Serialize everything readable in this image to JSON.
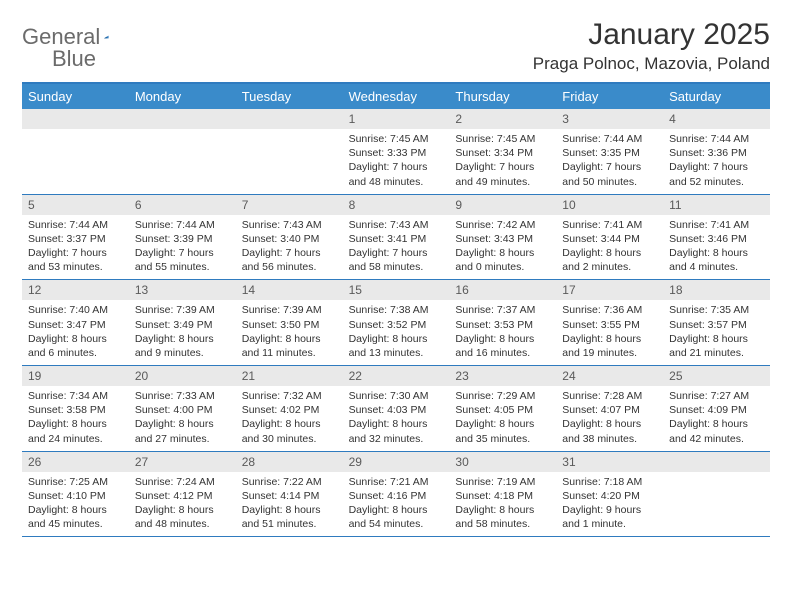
{
  "brand": {
    "part1": "General",
    "part2": "Blue"
  },
  "title": {
    "month": "January 2025",
    "location": "Praga Polnoc, Mazovia, Poland"
  },
  "colors": {
    "header_bg": "#3a8bca",
    "border": "#2f7bbf",
    "num_bg": "#e9e9e9",
    "text": "#333333",
    "logo_gray": "#6b6b6b"
  },
  "dayNames": [
    "Sunday",
    "Monday",
    "Tuesday",
    "Wednesday",
    "Thursday",
    "Friday",
    "Saturday"
  ],
  "weeks": [
    [
      {
        "n": "",
        "sr": "",
        "ss": "",
        "d1": "",
        "d2": ""
      },
      {
        "n": "",
        "sr": "",
        "ss": "",
        "d1": "",
        "d2": ""
      },
      {
        "n": "",
        "sr": "",
        "ss": "",
        "d1": "",
        "d2": ""
      },
      {
        "n": "1",
        "sr": "Sunrise: 7:45 AM",
        "ss": "Sunset: 3:33 PM",
        "d1": "Daylight: 7 hours",
        "d2": "and 48 minutes."
      },
      {
        "n": "2",
        "sr": "Sunrise: 7:45 AM",
        "ss": "Sunset: 3:34 PM",
        "d1": "Daylight: 7 hours",
        "d2": "and 49 minutes."
      },
      {
        "n": "3",
        "sr": "Sunrise: 7:44 AM",
        "ss": "Sunset: 3:35 PM",
        "d1": "Daylight: 7 hours",
        "d2": "and 50 minutes."
      },
      {
        "n": "4",
        "sr": "Sunrise: 7:44 AM",
        "ss": "Sunset: 3:36 PM",
        "d1": "Daylight: 7 hours",
        "d2": "and 52 minutes."
      }
    ],
    [
      {
        "n": "5",
        "sr": "Sunrise: 7:44 AM",
        "ss": "Sunset: 3:37 PM",
        "d1": "Daylight: 7 hours",
        "d2": "and 53 minutes."
      },
      {
        "n": "6",
        "sr": "Sunrise: 7:44 AM",
        "ss": "Sunset: 3:39 PM",
        "d1": "Daylight: 7 hours",
        "d2": "and 55 minutes."
      },
      {
        "n": "7",
        "sr": "Sunrise: 7:43 AM",
        "ss": "Sunset: 3:40 PM",
        "d1": "Daylight: 7 hours",
        "d2": "and 56 minutes."
      },
      {
        "n": "8",
        "sr": "Sunrise: 7:43 AM",
        "ss": "Sunset: 3:41 PM",
        "d1": "Daylight: 7 hours",
        "d2": "and 58 minutes."
      },
      {
        "n": "9",
        "sr": "Sunrise: 7:42 AM",
        "ss": "Sunset: 3:43 PM",
        "d1": "Daylight: 8 hours",
        "d2": "and 0 minutes."
      },
      {
        "n": "10",
        "sr": "Sunrise: 7:41 AM",
        "ss": "Sunset: 3:44 PM",
        "d1": "Daylight: 8 hours",
        "d2": "and 2 minutes."
      },
      {
        "n": "11",
        "sr": "Sunrise: 7:41 AM",
        "ss": "Sunset: 3:46 PM",
        "d1": "Daylight: 8 hours",
        "d2": "and 4 minutes."
      }
    ],
    [
      {
        "n": "12",
        "sr": "Sunrise: 7:40 AM",
        "ss": "Sunset: 3:47 PM",
        "d1": "Daylight: 8 hours",
        "d2": "and 6 minutes."
      },
      {
        "n": "13",
        "sr": "Sunrise: 7:39 AM",
        "ss": "Sunset: 3:49 PM",
        "d1": "Daylight: 8 hours",
        "d2": "and 9 minutes."
      },
      {
        "n": "14",
        "sr": "Sunrise: 7:39 AM",
        "ss": "Sunset: 3:50 PM",
        "d1": "Daylight: 8 hours",
        "d2": "and 11 minutes."
      },
      {
        "n": "15",
        "sr": "Sunrise: 7:38 AM",
        "ss": "Sunset: 3:52 PM",
        "d1": "Daylight: 8 hours",
        "d2": "and 13 minutes."
      },
      {
        "n": "16",
        "sr": "Sunrise: 7:37 AM",
        "ss": "Sunset: 3:53 PM",
        "d1": "Daylight: 8 hours",
        "d2": "and 16 minutes."
      },
      {
        "n": "17",
        "sr": "Sunrise: 7:36 AM",
        "ss": "Sunset: 3:55 PM",
        "d1": "Daylight: 8 hours",
        "d2": "and 19 minutes."
      },
      {
        "n": "18",
        "sr": "Sunrise: 7:35 AM",
        "ss": "Sunset: 3:57 PM",
        "d1": "Daylight: 8 hours",
        "d2": "and 21 minutes."
      }
    ],
    [
      {
        "n": "19",
        "sr": "Sunrise: 7:34 AM",
        "ss": "Sunset: 3:58 PM",
        "d1": "Daylight: 8 hours",
        "d2": "and 24 minutes."
      },
      {
        "n": "20",
        "sr": "Sunrise: 7:33 AM",
        "ss": "Sunset: 4:00 PM",
        "d1": "Daylight: 8 hours",
        "d2": "and 27 minutes."
      },
      {
        "n": "21",
        "sr": "Sunrise: 7:32 AM",
        "ss": "Sunset: 4:02 PM",
        "d1": "Daylight: 8 hours",
        "d2": "and 30 minutes."
      },
      {
        "n": "22",
        "sr": "Sunrise: 7:30 AM",
        "ss": "Sunset: 4:03 PM",
        "d1": "Daylight: 8 hours",
        "d2": "and 32 minutes."
      },
      {
        "n": "23",
        "sr": "Sunrise: 7:29 AM",
        "ss": "Sunset: 4:05 PM",
        "d1": "Daylight: 8 hours",
        "d2": "and 35 minutes."
      },
      {
        "n": "24",
        "sr": "Sunrise: 7:28 AM",
        "ss": "Sunset: 4:07 PM",
        "d1": "Daylight: 8 hours",
        "d2": "and 38 minutes."
      },
      {
        "n": "25",
        "sr": "Sunrise: 7:27 AM",
        "ss": "Sunset: 4:09 PM",
        "d1": "Daylight: 8 hours",
        "d2": "and 42 minutes."
      }
    ],
    [
      {
        "n": "26",
        "sr": "Sunrise: 7:25 AM",
        "ss": "Sunset: 4:10 PM",
        "d1": "Daylight: 8 hours",
        "d2": "and 45 minutes."
      },
      {
        "n": "27",
        "sr": "Sunrise: 7:24 AM",
        "ss": "Sunset: 4:12 PM",
        "d1": "Daylight: 8 hours",
        "d2": "and 48 minutes."
      },
      {
        "n": "28",
        "sr": "Sunrise: 7:22 AM",
        "ss": "Sunset: 4:14 PM",
        "d1": "Daylight: 8 hours",
        "d2": "and 51 minutes."
      },
      {
        "n": "29",
        "sr": "Sunrise: 7:21 AM",
        "ss": "Sunset: 4:16 PM",
        "d1": "Daylight: 8 hours",
        "d2": "and 54 minutes."
      },
      {
        "n": "30",
        "sr": "Sunrise: 7:19 AM",
        "ss": "Sunset: 4:18 PM",
        "d1": "Daylight: 8 hours",
        "d2": "and 58 minutes."
      },
      {
        "n": "31",
        "sr": "Sunrise: 7:18 AM",
        "ss": "Sunset: 4:20 PM",
        "d1": "Daylight: 9 hours",
        "d2": "and 1 minute."
      },
      {
        "n": "",
        "sr": "",
        "ss": "",
        "d1": "",
        "d2": ""
      }
    ]
  ]
}
